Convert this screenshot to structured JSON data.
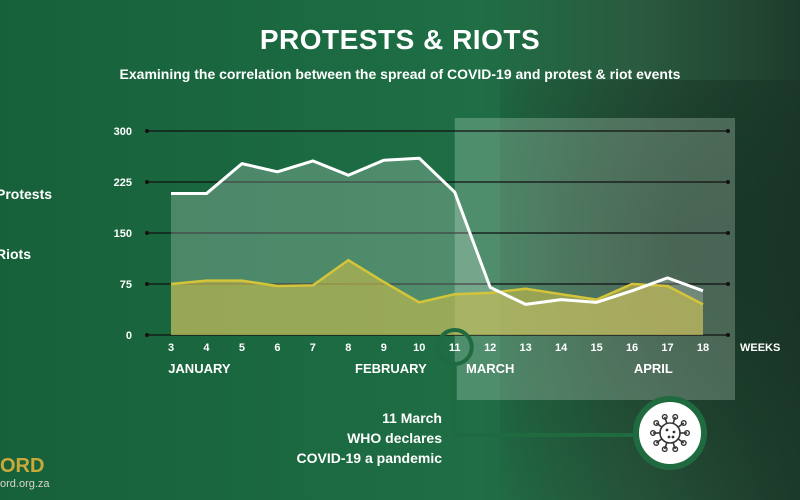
{
  "header": {
    "title": "PROTESTS & RIOTS",
    "subtitle": "Examining the correlation between the spread of COVID-19 and protest & riot events"
  },
  "legend": {
    "protests": "Protests",
    "riots": "Riots"
  },
  "branding": {
    "logo": "ORD",
    "url": "ord.org.za"
  },
  "annotation": {
    "line1": "11 March",
    "line2": "WHO declares",
    "line3": "COVID-19 a pandemic",
    "icon": "virus-icon"
  },
  "colors": {
    "protests": "#ffffff",
    "riots": "#d4c43a",
    "riots_fill": "#c9bd4a",
    "highlight": "#1f6b3f"
  },
  "chart_data": {
    "type": "area",
    "x": [
      3,
      4,
      5,
      6,
      7,
      8,
      9,
      10,
      11,
      12,
      13,
      14,
      15,
      16,
      17,
      18
    ],
    "xlabel": "WEEKS",
    "yticks": [
      0,
      75,
      150,
      225,
      300
    ],
    "ylim": [
      0,
      300
    ],
    "grid": true,
    "months": [
      {
        "label": "JANUARY",
        "week": 3.8
      },
      {
        "label": "FEBRUARY",
        "week": 9.2
      },
      {
        "label": "MARCH",
        "week": 12.0
      },
      {
        "label": "APRIL",
        "week": 16.6
      }
    ],
    "highlight_start_week": 11,
    "series": [
      {
        "name": "Protests",
        "values": [
          208,
          208,
          252,
          240,
          256,
          235,
          257,
          260,
          210,
          70,
          45,
          52,
          48,
          65,
          84,
          65
        ]
      },
      {
        "name": "Riots",
        "values": [
          75,
          80,
          80,
          72,
          73,
          110,
          78,
          48,
          60,
          62,
          68,
          60,
          52,
          75,
          72,
          45
        ]
      }
    ]
  }
}
